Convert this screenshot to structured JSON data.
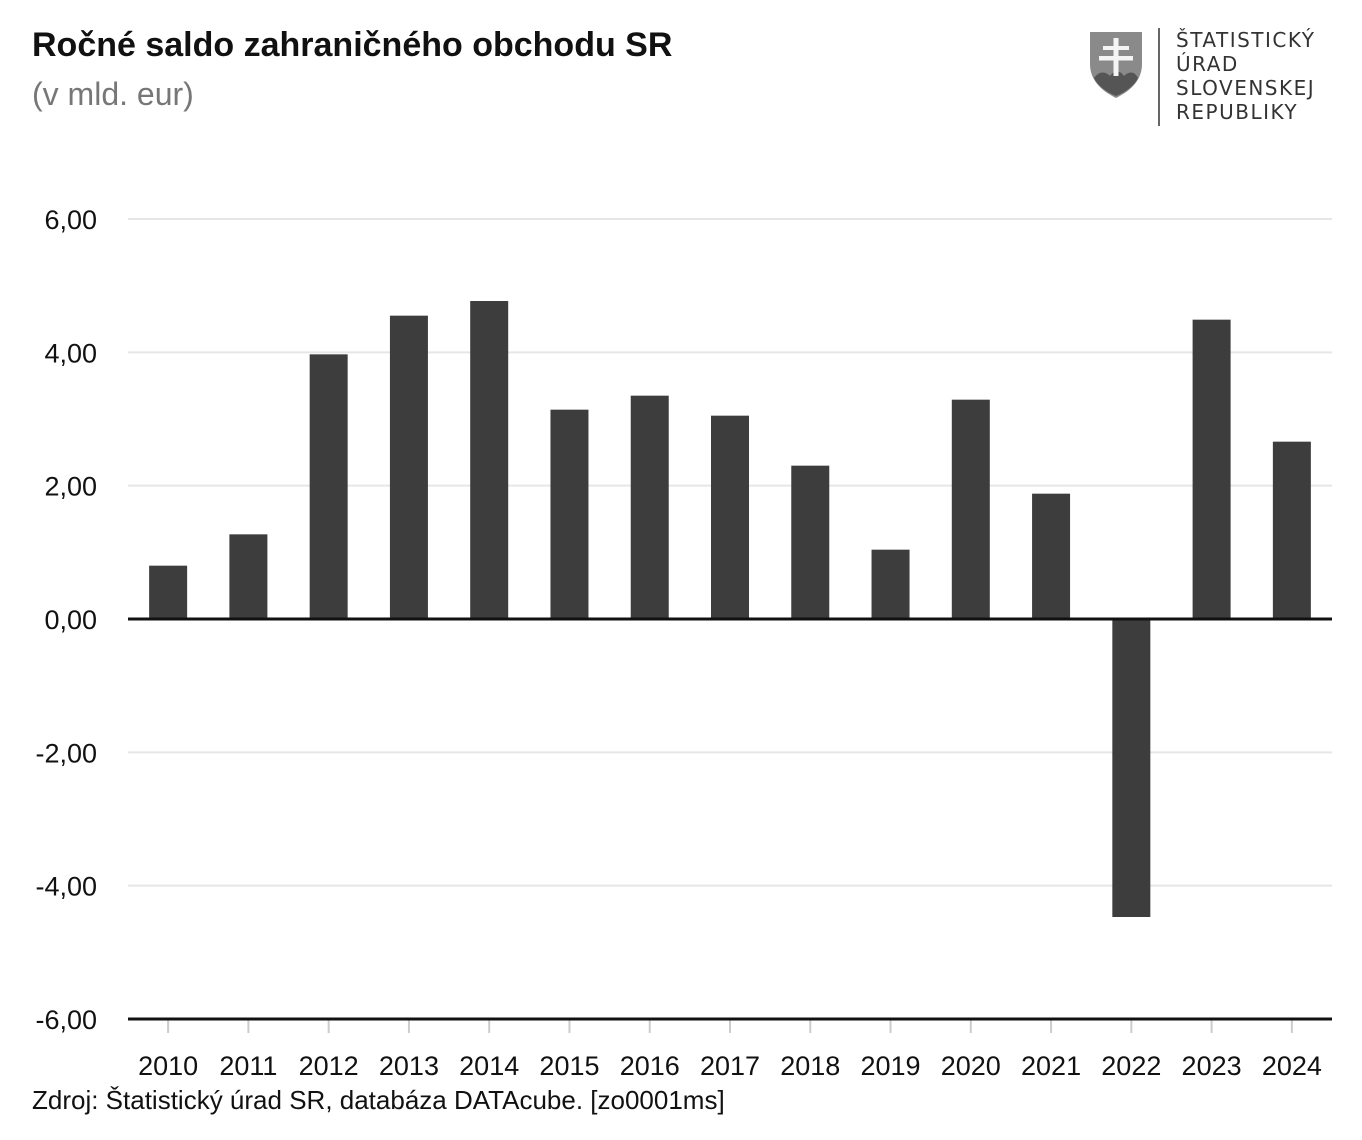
{
  "title": "Ročné saldo zahraničného obchodu SR",
  "subtitle": "(v mld. eur)",
  "logo": {
    "lines": [
      "ŠTATISTICKÝ",
      "ÚRAD",
      "SLOVENSKEJ",
      "REPUBLIKY"
    ],
    "icon": "slovak-coat-of-arms-icon"
  },
  "source": "Zdroj: Štatistický úrad SR, databáza DATAcube. [zo0001ms]",
  "colors": {
    "bar": "#3d3d3d",
    "grid": "#e6e6e6",
    "axis": "#111111",
    "subtitle": "#777777"
  },
  "chart_data": {
    "type": "bar",
    "title": "Ročné saldo zahraničného obchodu SR",
    "subtitle": "(v mld. eur)",
    "xlabel": "",
    "ylabel": "",
    "categories": [
      "2010",
      "2011",
      "2012",
      "2013",
      "2014",
      "2015",
      "2016",
      "2017",
      "2018",
      "2019",
      "2020",
      "2021",
      "2022",
      "2023",
      "2024"
    ],
    "values": [
      0.8,
      1.27,
      3.97,
      4.55,
      4.77,
      3.14,
      3.35,
      3.05,
      2.3,
      1.04,
      3.29,
      1.88,
      -4.47,
      4.49,
      2.66
    ],
    "ylim": [
      -6,
      6
    ],
    "yticks": [
      6,
      4,
      2,
      0,
      -2,
      -4,
      -6
    ],
    "ytick_labels": [
      "6,00",
      "4,00",
      "2,00",
      "0,00",
      "-2,00",
      "-4,00",
      "-6,00"
    ],
    "grid": true,
    "legend": "none"
  }
}
